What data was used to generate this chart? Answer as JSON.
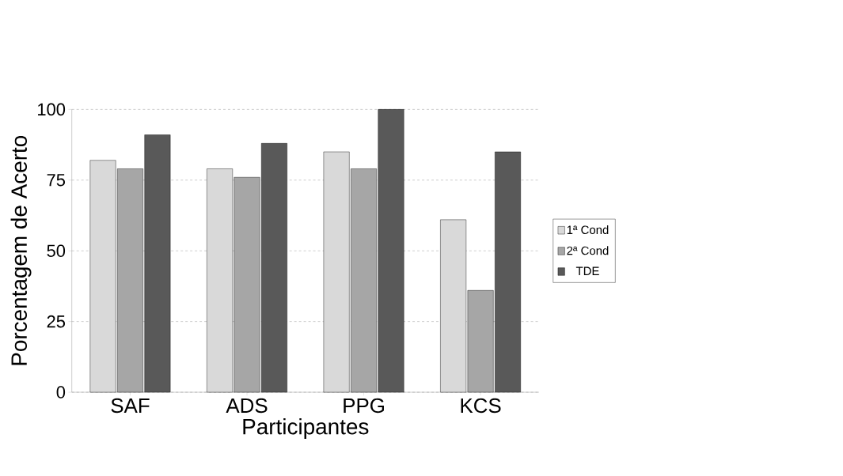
{
  "chart_data": {
    "type": "bar",
    "xlabel": "Participantes",
    "ylabel": "Porcentagem de Acerto",
    "categories": [
      "SAF",
      "ADS",
      "PPG",
      "KCS"
    ],
    "series": [
      {
        "name": "1ª Cond",
        "color": "#d9d9d9",
        "values": [
          82,
          79,
          85,
          61
        ]
      },
      {
        "name": "2ª Cond",
        "color": "#a6a6a6",
        "values": [
          79,
          76,
          79,
          36
        ]
      },
      {
        "name": "TDE",
        "color": "#595959",
        "values": [
          91,
          88,
          100,
          85
        ]
      }
    ],
    "ylim": [
      0,
      100
    ],
    "yticks": [
      0,
      25,
      50,
      75,
      100
    ],
    "grid": "y",
    "legend": "right"
  }
}
